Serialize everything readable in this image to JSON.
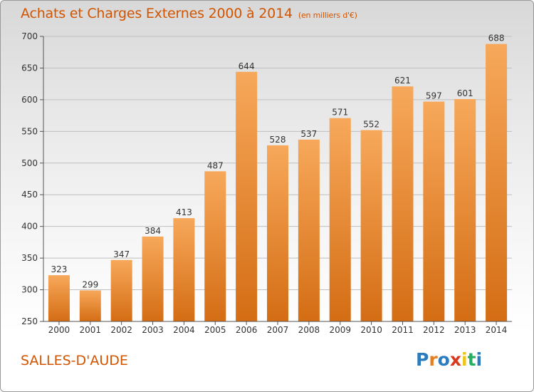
{
  "header": {
    "title": "Achats et Charges Externes 2000 à 2014",
    "subtitle": "(en milliers d'€)"
  },
  "footer": {
    "place": "SALLES-D'AUDE",
    "logo_text": "Proxiti"
  },
  "colors": {
    "title": "#d35400",
    "bar_top": "#f7a85a",
    "bar_bottom": "#d46d14",
    "grid": "#bfbfbf"
  },
  "chart_data": {
    "type": "bar",
    "categories": [
      "2000",
      "2001",
      "2002",
      "2003",
      "2004",
      "2005",
      "2006",
      "2007",
      "2008",
      "2009",
      "2010",
      "2011",
      "2012",
      "2013",
      "2014"
    ],
    "values": [
      323,
      299,
      347,
      384,
      413,
      487,
      644,
      528,
      537,
      571,
      552,
      621,
      597,
      601,
      688
    ],
    "ylim": [
      250,
      700
    ],
    "yticks": [
      250,
      300,
      350,
      400,
      450,
      500,
      550,
      600,
      650,
      700
    ],
    "grid": true,
    "data_labels": true
  }
}
